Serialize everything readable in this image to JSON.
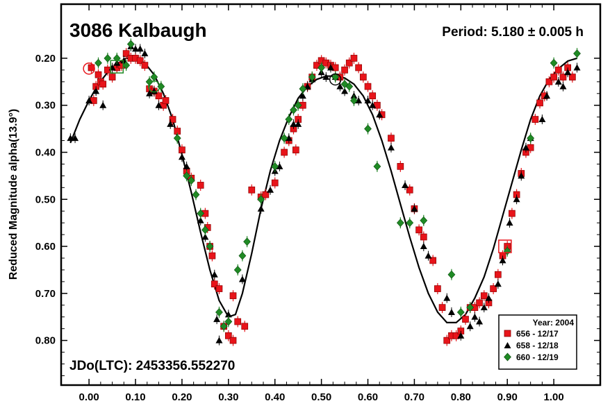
{
  "chart_data": {
    "type": "scatter",
    "title": "3086 Kalbaugh",
    "period_text": "Period: 5.180 ± 0.005 h",
    "epoch_text": "JDo(LTC): 2453356.552270",
    "xlabel": "",
    "ylabel": "Reduced Magnitude alpha(13.9°)",
    "xlim": [
      -0.06,
      1.1
    ],
    "ylim": [
      0.895,
      0.085
    ],
    "y_inverted": true,
    "x_ticks": [
      "0.00",
      "0.10",
      "0.20",
      "0.30",
      "0.40",
      "0.50",
      "0.60",
      "0.70",
      "0.80",
      "0.90",
      "1.00"
    ],
    "y_ticks": [
      "0.20",
      "0.30",
      "0.40",
      "0.50",
      "0.60",
      "0.70",
      "0.80"
    ],
    "grid": false,
    "legend": {
      "position": "bottom-right",
      "title": "Year: 2004",
      "entries": [
        "656 - 12/17",
        "658 - 12/18",
        "660 - 12/19"
      ]
    },
    "colors": {
      "red": "#e8141a",
      "green": "#1f8a24",
      "black": "#000000"
    },
    "series": [
      {
        "name": "656 - 12/17",
        "marker": "square",
        "color": "#e8141a",
        "points": [
          [
            0.005,
            0.22
          ],
          [
            0.01,
            0.29
          ],
          [
            0.015,
            0.26
          ],
          [
            0.02,
            0.235
          ],
          [
            0.025,
            0.25
          ],
          [
            0.03,
            0.255
          ],
          [
            0.04,
            0.225
          ],
          [
            0.05,
            0.24
          ],
          [
            0.06,
            0.22
          ],
          [
            0.07,
            0.215
          ],
          [
            0.08,
            0.19
          ],
          [
            0.09,
            0.2
          ],
          [
            0.1,
            0.2
          ],
          [
            0.11,
            0.205
          ],
          [
            0.12,
            0.215
          ],
          [
            0.13,
            0.265
          ],
          [
            0.14,
            0.27
          ],
          [
            0.15,
            0.28
          ],
          [
            0.16,
            0.3
          ],
          [
            0.165,
            0.29
          ],
          [
            0.18,
            0.33
          ],
          [
            0.19,
            0.355
          ],
          [
            0.2,
            0.395
          ],
          [
            0.21,
            0.44
          ],
          [
            0.22,
            0.455
          ],
          [
            0.24,
            0.47
          ],
          [
            0.25,
            0.53
          ],
          [
            0.255,
            0.56
          ],
          [
            0.26,
            0.6
          ],
          [
            0.265,
            0.62
          ],
          [
            0.27,
            0.68
          ],
          [
            0.28,
            0.69
          ],
          [
            0.29,
            0.77
          ],
          [
            0.3,
            0.79
          ],
          [
            0.31,
            0.8
          ],
          [
            0.31,
            0.705
          ],
          [
            0.32,
            0.76
          ],
          [
            0.335,
            0.77
          ],
          [
            0.35,
            0.48
          ],
          [
            0.37,
            0.495
          ],
          [
            0.38,
            0.49
          ],
          [
            0.4,
            0.465
          ],
          [
            0.42,
            0.4
          ],
          [
            0.43,
            0.375
          ],
          [
            0.44,
            0.35
          ],
          [
            0.445,
            0.395
          ],
          [
            0.45,
            0.33
          ],
          [
            0.46,
            0.3
          ],
          [
            0.47,
            0.26
          ],
          [
            0.48,
            0.24
          ],
          [
            0.49,
            0.215
          ],
          [
            0.5,
            0.205
          ],
          [
            0.51,
            0.21
          ],
          [
            0.52,
            0.215
          ],
          [
            0.53,
            0.22
          ],
          [
            0.54,
            0.24
          ],
          [
            0.55,
            0.225
          ],
          [
            0.56,
            0.21
          ],
          [
            0.57,
            0.2
          ],
          [
            0.58,
            0.22
          ],
          [
            0.59,
            0.24
          ],
          [
            0.6,
            0.26
          ],
          [
            0.61,
            0.28
          ],
          [
            0.62,
            0.3
          ],
          [
            0.63,
            0.32
          ],
          [
            0.65,
            0.37
          ],
          [
            0.67,
            0.43
          ],
          [
            0.69,
            0.48
          ],
          [
            0.7,
            0.52
          ],
          [
            0.71,
            0.565
          ],
          [
            0.72,
            0.58
          ],
          [
            0.74,
            0.63
          ],
          [
            0.75,
            0.69
          ],
          [
            0.76,
            0.73
          ],
          [
            0.77,
            0.8
          ],
          [
            0.78,
            0.79
          ],
          [
            0.79,
            0.79
          ],
          [
            0.8,
            0.78
          ],
          [
            0.81,
            0.755
          ],
          [
            0.82,
            0.73
          ],
          [
            0.83,
            0.73
          ],
          [
            0.84,
            0.72
          ],
          [
            0.85,
            0.705
          ],
          [
            0.86,
            0.72
          ],
          [
            0.87,
            0.69
          ],
          [
            0.88,
            0.66
          ],
          [
            0.89,
            0.62
          ],
          [
            0.9,
            0.6
          ],
          [
            0.91,
            0.53
          ],
          [
            0.92,
            0.49
          ],
          [
            0.93,
            0.445
          ],
          [
            0.94,
            0.4
          ],
          [
            0.95,
            0.39
          ],
          [
            0.96,
            0.33
          ],
          [
            0.97,
            0.295
          ],
          [
            0.98,
            0.28
          ],
          [
            0.99,
            0.25
          ],
          [
            1.0,
            0.24
          ],
          [
            1.01,
            0.225
          ],
          [
            1.02,
            0.24
          ],
          [
            1.03,
            0.22
          ],
          [
            1.04,
            0.24
          ]
        ]
      },
      {
        "name": "658 - 12/18",
        "marker": "triangle",
        "color": "#000000",
        "points": [
          [
            -0.04,
            0.37
          ],
          [
            -0.03,
            0.37
          ],
          [
            0.0,
            0.29
          ],
          [
            0.015,
            0.27
          ],
          [
            0.03,
            0.3
          ],
          [
            0.05,
            0.22
          ],
          [
            0.06,
            0.21
          ],
          [
            0.075,
            0.205
          ],
          [
            0.09,
            0.175
          ],
          [
            0.1,
            0.18
          ],
          [
            0.11,
            0.18
          ],
          [
            0.12,
            0.19
          ],
          [
            0.13,
            0.275
          ],
          [
            0.14,
            0.27
          ],
          [
            0.15,
            0.3
          ],
          [
            0.175,
            0.34
          ],
          [
            0.2,
            0.41
          ],
          [
            0.21,
            0.43
          ],
          [
            0.24,
            0.545
          ],
          [
            0.25,
            0.58
          ],
          [
            0.27,
            0.66
          ],
          [
            0.275,
            0.755
          ],
          [
            0.28,
            0.8
          ],
          [
            0.3,
            0.745
          ],
          [
            0.33,
            0.67
          ],
          [
            0.37,
            0.52
          ],
          [
            0.39,
            0.48
          ],
          [
            0.4,
            0.44
          ],
          [
            0.41,
            0.43
          ],
          [
            0.43,
            0.37
          ],
          [
            0.44,
            0.34
          ],
          [
            0.45,
            0.34
          ],
          [
            0.46,
            0.28
          ],
          [
            0.47,
            0.26
          ],
          [
            0.48,
            0.245
          ],
          [
            0.5,
            0.23
          ],
          [
            0.51,
            0.24
          ],
          [
            0.52,
            0.22
          ],
          [
            0.53,
            0.24
          ],
          [
            0.54,
            0.26
          ],
          [
            0.55,
            0.27
          ],
          [
            0.57,
            0.28
          ],
          [
            0.58,
            0.29
          ],
          [
            0.6,
            0.29
          ],
          [
            0.61,
            0.3
          ],
          [
            0.625,
            0.32
          ],
          [
            0.65,
            0.39
          ],
          [
            0.68,
            0.47
          ],
          [
            0.7,
            0.52
          ],
          [
            0.72,
            0.6
          ],
          [
            0.73,
            0.62
          ],
          [
            0.77,
            0.71
          ],
          [
            0.78,
            0.74
          ],
          [
            0.8,
            0.79
          ],
          [
            0.82,
            0.77
          ],
          [
            0.83,
            0.75
          ],
          [
            0.84,
            0.76
          ],
          [
            0.85,
            0.73
          ],
          [
            0.86,
            0.71
          ],
          [
            0.88,
            0.68
          ],
          [
            0.89,
            0.63
          ],
          [
            0.905,
            0.55
          ],
          [
            0.92,
            0.5
          ],
          [
            0.93,
            0.45
          ],
          [
            0.94,
            0.39
          ],
          [
            0.95,
            0.37
          ],
          [
            0.975,
            0.33
          ],
          [
            0.985,
            0.28
          ],
          [
            1.01,
            0.25
          ],
          [
            1.02,
            0.26
          ],
          [
            1.03,
            0.23
          ],
          [
            1.05,
            0.22
          ]
        ]
      },
      {
        "name": "660 - 12/19",
        "marker": "diamond",
        "color": "#1f8a24",
        "points": [
          [
            0.02,
            0.21
          ],
          [
            0.04,
            0.2
          ],
          [
            0.06,
            0.2
          ],
          [
            0.08,
            0.215
          ],
          [
            0.09,
            0.17
          ],
          [
            0.13,
            0.25
          ],
          [
            0.14,
            0.24
          ],
          [
            0.155,
            0.26
          ],
          [
            0.19,
            0.37
          ],
          [
            0.21,
            0.45
          ],
          [
            0.22,
            0.46
          ],
          [
            0.23,
            0.49
          ],
          [
            0.24,
            0.53
          ],
          [
            0.25,
            0.565
          ],
          [
            0.26,
            0.6
          ],
          [
            0.28,
            0.74
          ],
          [
            0.29,
            0.77
          ],
          [
            0.3,
            0.76
          ],
          [
            0.32,
            0.65
          ],
          [
            0.33,
            0.62
          ],
          [
            0.34,
            0.59
          ],
          [
            0.37,
            0.5
          ],
          [
            0.4,
            0.43
          ],
          [
            0.42,
            0.37
          ],
          [
            0.43,
            0.33
          ],
          [
            0.44,
            0.31
          ],
          [
            0.45,
            0.3
          ],
          [
            0.46,
            0.265
          ],
          [
            0.48,
            0.24
          ],
          [
            0.5,
            0.22
          ],
          [
            0.53,
            0.24
          ],
          [
            0.55,
            0.255
          ],
          [
            0.56,
            0.26
          ],
          [
            0.57,
            0.29
          ],
          [
            0.6,
            0.35
          ],
          [
            0.62,
            0.43
          ],
          [
            0.67,
            0.55
          ],
          [
            0.69,
            0.55
          ],
          [
            0.72,
            0.545
          ],
          [
            0.78,
            0.66
          ],
          [
            0.8,
            0.74
          ],
          [
            0.82,
            0.73
          ],
          [
            0.9,
            0.61
          ],
          [
            0.95,
            0.37
          ],
          [
            1.0,
            0.21
          ],
          [
            1.05,
            0.19
          ]
        ]
      }
    ],
    "fit_curve": {
      "name": "Fourier fit",
      "color": "#000000",
      "points": [
        [
          -0.04,
          0.38
        ],
        [
          -0.02,
          0.33
        ],
        [
          0.0,
          0.29
        ],
        [
          0.02,
          0.255
        ],
        [
          0.04,
          0.23
        ],
        [
          0.06,
          0.212
        ],
        [
          0.08,
          0.2
        ],
        [
          0.1,
          0.2
        ],
        [
          0.12,
          0.21
        ],
        [
          0.14,
          0.235
        ],
        [
          0.16,
          0.275
        ],
        [
          0.18,
          0.33
        ],
        [
          0.2,
          0.405
        ],
        [
          0.22,
          0.485
        ],
        [
          0.24,
          0.57
        ],
        [
          0.26,
          0.65
        ],
        [
          0.28,
          0.715
        ],
        [
          0.3,
          0.75
        ],
        [
          0.315,
          0.745
        ],
        [
          0.33,
          0.7
        ],
        [
          0.35,
          0.615
        ],
        [
          0.37,
          0.52
        ],
        [
          0.39,
          0.44
        ],
        [
          0.41,
          0.375
        ],
        [
          0.43,
          0.325
        ],
        [
          0.45,
          0.285
        ],
        [
          0.47,
          0.26
        ],
        [
          0.49,
          0.245
        ],
        [
          0.51,
          0.238
        ],
        [
          0.53,
          0.238
        ],
        [
          0.55,
          0.242
        ],
        [
          0.57,
          0.255
        ],
        [
          0.59,
          0.28
        ],
        [
          0.61,
          0.32
        ],
        [
          0.63,
          0.375
        ],
        [
          0.65,
          0.44
        ],
        [
          0.67,
          0.51
        ],
        [
          0.69,
          0.58
        ],
        [
          0.71,
          0.645
        ],
        [
          0.73,
          0.7
        ],
        [
          0.75,
          0.74
        ],
        [
          0.77,
          0.762
        ],
        [
          0.79,
          0.762
        ],
        [
          0.81,
          0.745
        ],
        [
          0.83,
          0.71
        ],
        [
          0.85,
          0.665
        ],
        [
          0.87,
          0.605
        ],
        [
          0.89,
          0.535
        ],
        [
          0.91,
          0.465
        ],
        [
          0.93,
          0.395
        ],
        [
          0.95,
          0.33
        ],
        [
          0.97,
          0.28
        ],
        [
          0.99,
          0.245
        ],
        [
          1.01,
          0.222
        ],
        [
          1.03,
          0.206
        ],
        [
          1.05,
          0.2
        ]
      ]
    },
    "highlighted_points": [
      {
        "x": 0.0,
        "y": 0.222,
        "marker": "circle",
        "color": "#e8141a"
      },
      {
        "x": 0.06,
        "y": 0.218,
        "marker": "square",
        "color": "#1f8a24"
      },
      {
        "x": 0.14,
        "y": 0.26,
        "marker": "circle",
        "color": "#1f8a24"
      },
      {
        "x": 0.53,
        "y": 0.245,
        "marker": "circle",
        "color": "#000000"
      },
      {
        "x": 0.895,
        "y": 0.6,
        "marker": "square",
        "color": "#e8141a"
      }
    ]
  }
}
